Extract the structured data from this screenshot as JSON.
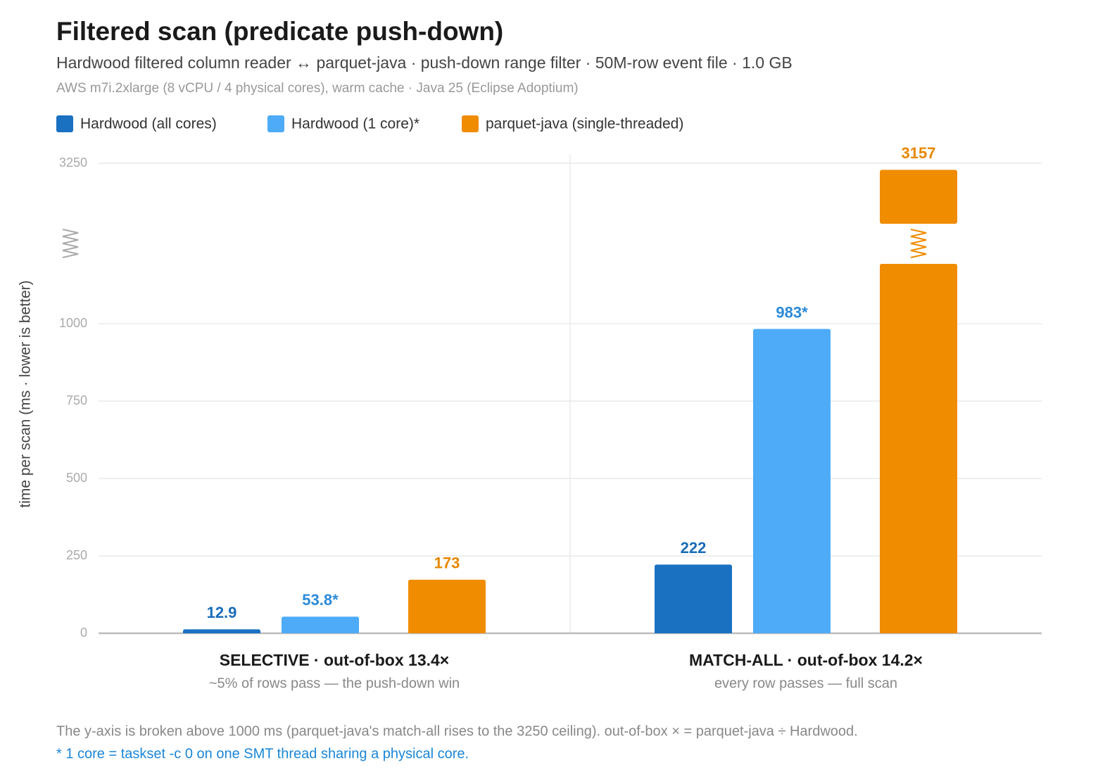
{
  "chart_data": {
    "type": "bar",
    "title": "Filtered scan (predicate push-down)",
    "subtitle": "Hardwood filtered column reader ↔ parquet-java · push-down range filter · 50M-row event file · 1.0 GB",
    "caption": "AWS m7i.2xlarge (8 vCPU / 4 physical cores), warm cache · Java 25 (Eclipse Adoptium)",
    "y_label": "time per scan (ms · lower is better)",
    "categories": [
      "SELECTIVE · out-of-box 13.4×",
      "MATCH-ALL · out-of-box 14.2×"
    ],
    "category_subtitles": [
      "~5% of rows pass — the push-down win",
      "every row passes — full scan"
    ],
    "series": [
      {
        "name": "Hardwood (all cores)",
        "color": "#1a71c2",
        "label_color": "#1a6cb8",
        "values": [
          12.9,
          222
        ]
      },
      {
        "name": "Hardwood (1 core)*",
        "color": "#4dabf7",
        "label_color": "#2b8ad8",
        "values": [
          53.8,
          983
        ],
        "value_labels": [
          "53.8*",
          "983*"
        ]
      },
      {
        "name": "parquet-java (single-threaded)",
        "color": "#f08c00",
        "label_color": "#e88700",
        "values": [
          173,
          3157
        ]
      }
    ],
    "ylim": [
      0,
      3250
    ],
    "yticks": [
      0,
      250,
      500,
      750,
      1000,
      3250
    ],
    "y_axis_break": true,
    "grid": true,
    "legend": "top-left",
    "notes": [
      "The y-axis is broken above 1000 ms (parquet-java's match-all rises to the 3250 ceiling). out-of-box × = parquet-java ÷ Hardwood.",
      "* 1 core = taskset -c 0 on one SMT thread sharing a physical core."
    ]
  }
}
